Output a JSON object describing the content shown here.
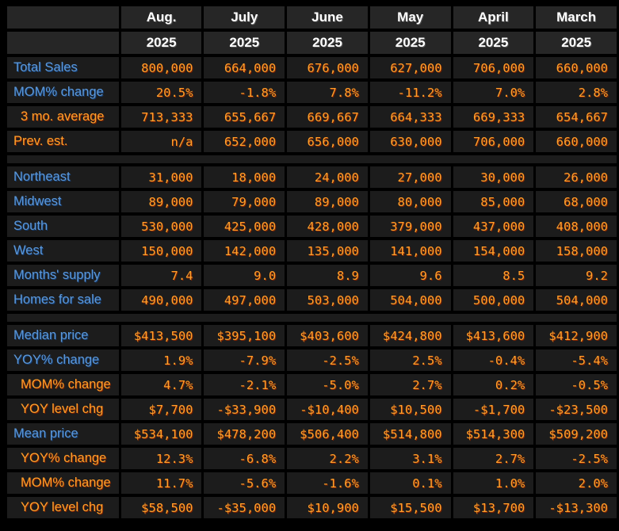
{
  "colors": {
    "page_bg": "#000000",
    "cell_bg": "#1c1c1c",
    "header_bg": "#262626",
    "label_blue": "#5c98d9",
    "value_orange": "#ffa02b",
    "header_white": "#ffffff"
  },
  "chart_data": {
    "type": "table",
    "columns": [
      {
        "month": "Aug.",
        "year": "2025"
      },
      {
        "month": "July",
        "year": "2025"
      },
      {
        "month": "June",
        "year": "2025"
      },
      {
        "month": "May",
        "year": "2025"
      },
      {
        "month": "April",
        "year": "2025"
      },
      {
        "month": "March",
        "year": "2025"
      }
    ],
    "sections": [
      {
        "rows": [
          {
            "label": "Total Sales",
            "color": "blue",
            "indent": false,
            "values": [
              "800,000",
              "664,000",
              "676,000",
              "627,000",
              "706,000",
              "660,000"
            ]
          },
          {
            "label": "MOM% change",
            "color": "blue",
            "indent": false,
            "values": [
              "20.5%",
              "-1.8%",
              "7.8%",
              "-11.2%",
              "7.0%",
              "2.8%"
            ]
          },
          {
            "label": "3 mo. average",
            "color": "orange",
            "indent": true,
            "values": [
              "713,333",
              "655,667",
              "669,667",
              "664,333",
              "669,333",
              "654,667"
            ]
          },
          {
            "label": "Prev. est.",
            "color": "orange",
            "indent": false,
            "values": [
              "n/a",
              "652,000",
              "656,000",
              "630,000",
              "706,000",
              "660,000"
            ]
          }
        ]
      },
      {
        "rows": [
          {
            "label": "Northeast",
            "color": "blue",
            "indent": false,
            "values": [
              "31,000",
              "18,000",
              "24,000",
              "27,000",
              "30,000",
              "26,000"
            ]
          },
          {
            "label": "Midwest",
            "color": "blue",
            "indent": false,
            "values": [
              "89,000",
              "79,000",
              "89,000",
              "80,000",
              "85,000",
              "68,000"
            ]
          },
          {
            "label": "South",
            "color": "blue",
            "indent": false,
            "values": [
              "530,000",
              "425,000",
              "428,000",
              "379,000",
              "437,000",
              "408,000"
            ]
          },
          {
            "label": "West",
            "color": "blue",
            "indent": false,
            "values": [
              "150,000",
              "142,000",
              "135,000",
              "141,000",
              "154,000",
              "158,000"
            ]
          },
          {
            "label": "Months' supply",
            "color": "blue",
            "indent": false,
            "values": [
              "7.4",
              "9.0",
              "8.9",
              "9.6",
              "8.5",
              "9.2"
            ]
          },
          {
            "label": "Homes for sale",
            "color": "blue",
            "indent": false,
            "values": [
              "490,000",
              "497,000",
              "503,000",
              "504,000",
              "500,000",
              "504,000"
            ]
          }
        ]
      },
      {
        "rows": [
          {
            "label": "Median price",
            "color": "blue",
            "indent": false,
            "values": [
              "$413,500",
              "$395,100",
              "$403,600",
              "$424,800",
              "$413,600",
              "$412,900"
            ]
          },
          {
            "label": "YOY% change",
            "color": "blue",
            "indent": false,
            "values": [
              "1.9%",
              "-7.9%",
              "-2.5%",
              "2.5%",
              "-0.4%",
              "-5.4%"
            ]
          },
          {
            "label": "MOM% change",
            "color": "orange",
            "indent": true,
            "values": [
              "4.7%",
              "-2.1%",
              "-5.0%",
              "2.7%",
              "0.2%",
              "-0.5%"
            ]
          },
          {
            "label": "YOY level chg",
            "color": "orange",
            "indent": true,
            "values": [
              "$7,700",
              "-$33,900",
              "-$10,400",
              "$10,500",
              "-$1,700",
              "-$23,500"
            ]
          },
          {
            "label": "Mean price",
            "color": "blue",
            "indent": false,
            "values": [
              "$534,100",
              "$478,200",
              "$506,400",
              "$514,800",
              "$514,300",
              "$509,200"
            ]
          },
          {
            "label": "YOY% change",
            "color": "orange",
            "indent": true,
            "values": [
              "12.3%",
              "-6.8%",
              "2.2%",
              "3.1%",
              "2.7%",
              "-2.5%"
            ]
          },
          {
            "label": "MOM% change",
            "color": "orange",
            "indent": true,
            "values": [
              "11.7%",
              "-5.6%",
              "-1.6%",
              "0.1%",
              "1.0%",
              "2.0%"
            ]
          },
          {
            "label": "YOY level chg",
            "color": "orange",
            "indent": true,
            "values": [
              "$58,500",
              "-$35,000",
              "$10,900",
              "$15,500",
              "$13,700",
              "-$13,300"
            ]
          }
        ]
      }
    ]
  }
}
